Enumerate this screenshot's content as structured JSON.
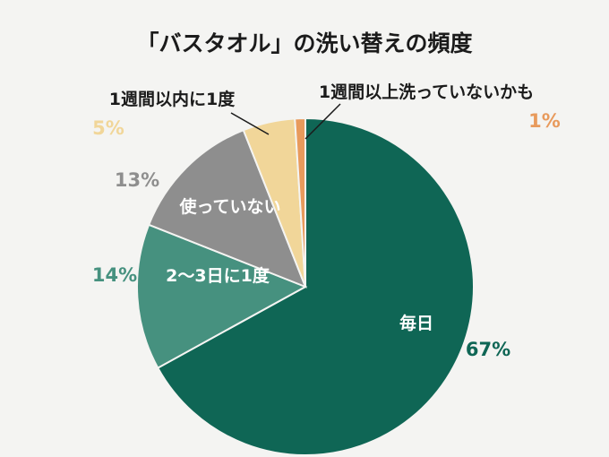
{
  "chart_data": {
    "type": "pie",
    "title": "「バスタオル」の洗い替えの頻度",
    "start_angle_deg": 0,
    "direction": "clockwise",
    "slices": [
      {
        "label": "毎日",
        "value": 67,
        "percent_label": "67%",
        "color": "#0f6655",
        "percent_color": "#0f6655",
        "label_inside": true
      },
      {
        "label": "2〜3日に1度",
        "value": 14,
        "percent_label": "14%",
        "color": "#46917f",
        "percent_color": "#46917f",
        "label_inside": true
      },
      {
        "label": "使っていない",
        "value": 13,
        "percent_label": "13%",
        "color": "#8e8e8e",
        "percent_color": "#8e8e8e",
        "label_inside": true
      },
      {
        "label": "1週間以内に1度",
        "value": 5,
        "percent_label": "5%",
        "color": "#f1d699",
        "percent_color": "#f1d699",
        "label_inside": false
      },
      {
        "label": "1週間以上洗っていないかも",
        "value": 1,
        "percent_label": "1%",
        "color": "#e89a5c",
        "percent_color": "#e89a5c",
        "label_inside": false
      }
    ]
  }
}
